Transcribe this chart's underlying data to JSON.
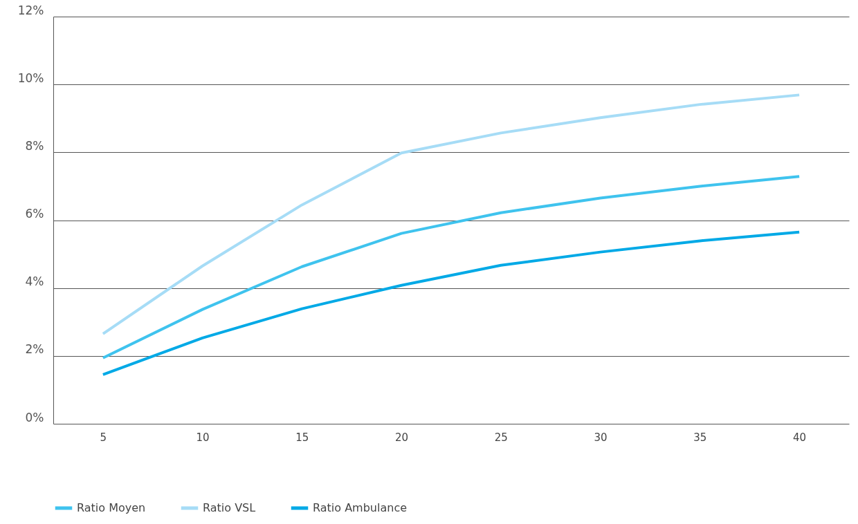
{
  "chart_data": {
    "type": "line",
    "x": [
      5,
      10,
      15,
      20,
      25,
      30,
      35,
      40
    ],
    "series": [
      {
        "name": "Ratio Moyen",
        "color": "#3fc3ee",
        "values": [
          1.94,
          3.37,
          4.63,
          5.61,
          6.22,
          6.65,
          7.0,
          7.29
        ]
      },
      {
        "name": "Ratio VSL",
        "color": "#a6dcf6",
        "values": [
          2.65,
          4.65,
          6.45,
          7.98,
          8.57,
          9.02,
          9.41,
          9.69
        ]
      },
      {
        "name": "Ratio Ambulance",
        "color": "#00a9e6",
        "values": [
          1.45,
          2.53,
          3.39,
          4.08,
          4.67,
          5.06,
          5.39,
          5.65
        ]
      }
    ],
    "xlim": [
      2.5,
      42.5
    ],
    "xticks": [
      5,
      10,
      15,
      20,
      25,
      30,
      35,
      40
    ],
    "ylim": [
      0,
      12
    ],
    "yticks": [
      {
        "value": 0,
        "label": "0%"
      },
      {
        "value": 2,
        "label": "2%"
      },
      {
        "value": 4,
        "label": "4%"
      },
      {
        "value": 6,
        "label": "6%"
      },
      {
        "value": 8,
        "label": "8%"
      },
      {
        "value": 10,
        "label": "10%"
      },
      {
        "value": 12,
        "label": "12%"
      }
    ],
    "grid": "y",
    "legend": "bottom",
    "marker": "none",
    "line_style": "solid"
  }
}
